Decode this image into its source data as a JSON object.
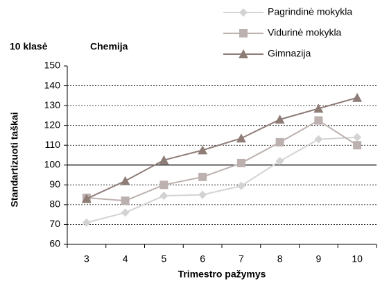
{
  "chart_data": {
    "type": "line",
    "grade": "10 klasė",
    "subject": "Chemija",
    "xlabel": "Trimestro pažymys",
    "ylabel": "Standartizuoti taškai",
    "categories": [
      "3",
      "4",
      "5",
      "6",
      "7",
      "8",
      "9",
      "10"
    ],
    "series": [
      {
        "name": "Pagrindinė mokykla",
        "color": "#d3d3d3",
        "marker": "diamond",
        "values": [
          71,
          76,
          84.5,
          85,
          89.5,
          102,
          113,
          114
        ]
      },
      {
        "name": "Vidurinė mokykla",
        "color": "#bcb1ae",
        "marker": "square",
        "values": [
          83.5,
          82,
          90,
          94,
          101,
          111.5,
          122.5,
          110
        ]
      },
      {
        "name": "Gimnazija",
        "color": "#8e7c77",
        "marker": "triangle",
        "values": [
          83,
          92,
          102.5,
          107.5,
          113.5,
          123,
          128.5,
          134
        ]
      }
    ],
    "ylim": [
      60,
      150
    ],
    "yticks": [
      60,
      70,
      80,
      90,
      100,
      110,
      120,
      130,
      140,
      150
    ],
    "grid": true,
    "reference_line": 100,
    "legend": "top-right"
  }
}
